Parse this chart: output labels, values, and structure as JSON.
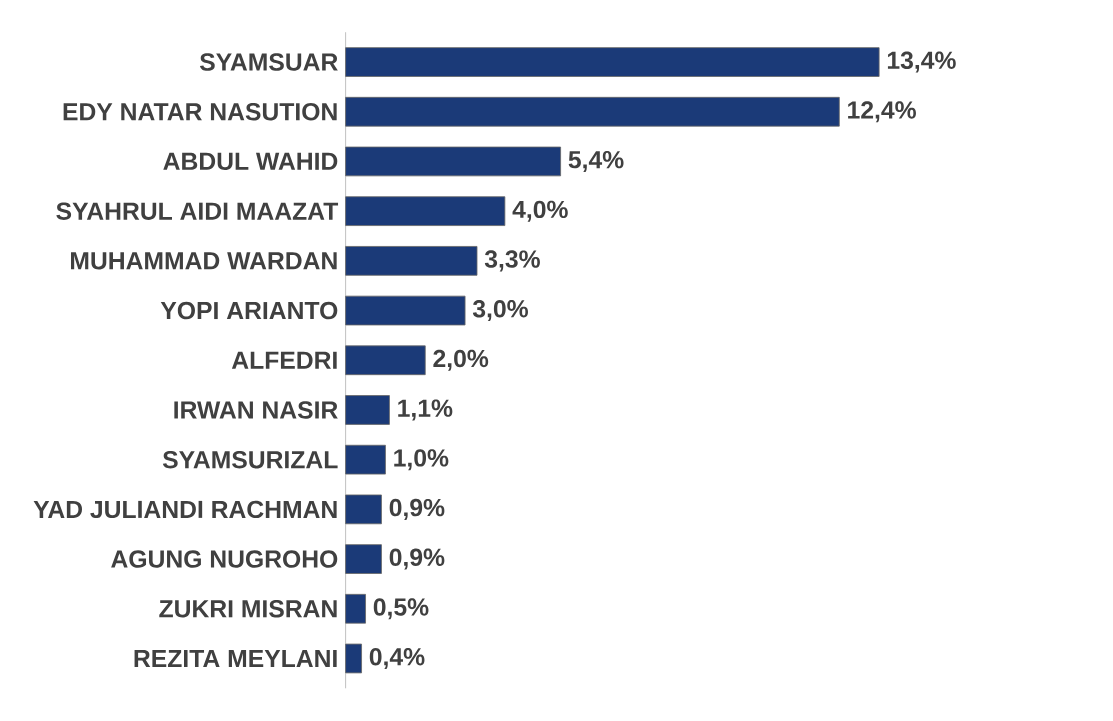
{
  "chart_data": {
    "type": "bar",
    "orientation": "horizontal",
    "categories": [
      "SYAMSUAR",
      "EDY NATAR NASUTION",
      "ABDUL WAHID",
      "SYAHRUL AIDI MAAZAT",
      "MUHAMMAD WARDAN",
      "YOPI ARIANTO",
      "ALFEDRI",
      "IRWAN NASIR",
      "SYAMSURIZAL",
      "YAD JULIANDI RACHMAN",
      "AGUNG NUGROHO",
      "ZUKRI MISRAN",
      "REZITA MEYLANI"
    ],
    "values": [
      13.4,
      12.4,
      5.4,
      4.0,
      3.3,
      3.0,
      2.0,
      1.1,
      1.0,
      0.9,
      0.9,
      0.5,
      0.4
    ],
    "value_labels": [
      "13,4%",
      "12,4%",
      "5,4%",
      "4,0%",
      "3,3%",
      "3,0%",
      "2,0%",
      "1,1%",
      "1,0%",
      "0,9%",
      "0,9%",
      "0,5%",
      "0,4%"
    ],
    "color": "#1b3a78",
    "tick_labels": "y"
  }
}
